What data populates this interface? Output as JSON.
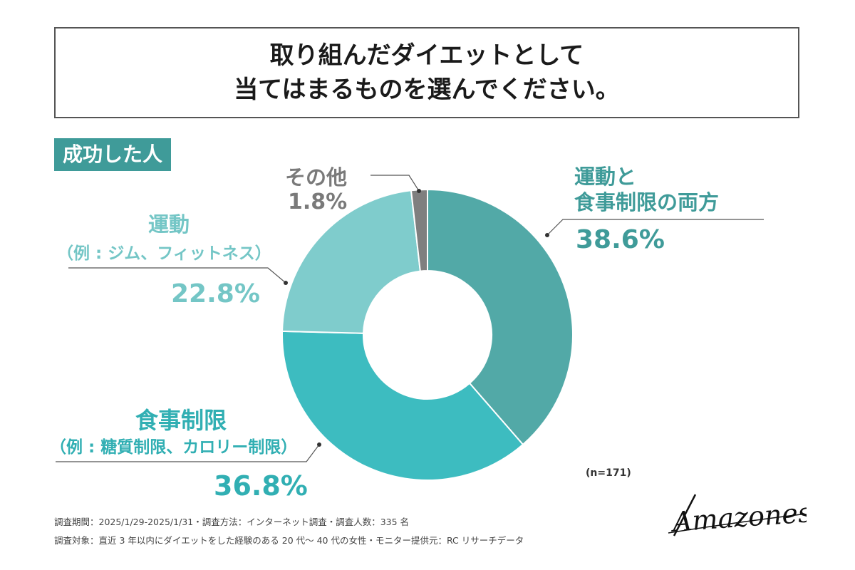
{
  "title": {
    "line1": "取り組んだダイエットとして",
    "line2": "当てはまるものを選んでください。"
  },
  "badge": "成功した人",
  "sample_note": "(n=171)",
  "survey_period": "調査期間：2025/1/29-2025/1/31・調査方法：インターネット調査・調査人数：335 名",
  "survey_target": "調査対象：直近 3 年以内にダイエットをした経験のある 20 代〜 40 代の女性・モニター提供元：RC リサーチデータ",
  "logo_text": "Amazones",
  "colors": {
    "both": "#52a9a7",
    "diet": "#3dbcc0",
    "exercise": "#7fcccc",
    "other": "#7f7f7f",
    "badge": "#3f9b99"
  },
  "chart_data": {
    "type": "pie",
    "donut": true,
    "slices": [
      {
        "label_lines": [
          "運動と",
          "食事制限の両方"
        ],
        "value": 38.6,
        "value_label": "38.6%",
        "color": "#52a9a7"
      },
      {
        "label_lines": [
          "食事制限",
          "（例 : 糖質制限、カロリー制限）"
        ],
        "value": 36.8,
        "value_label": "36.8%",
        "color": "#3dbcc0"
      },
      {
        "label_lines": [
          "運動",
          "（例 : ジム、フィットネス）"
        ],
        "value": 22.8,
        "value_label": "22.8%",
        "color": "#7fcccc"
      },
      {
        "label_lines": [
          "その他"
        ],
        "value": 1.8,
        "value_label": "1.8%",
        "color": "#7f7f7f"
      }
    ]
  }
}
